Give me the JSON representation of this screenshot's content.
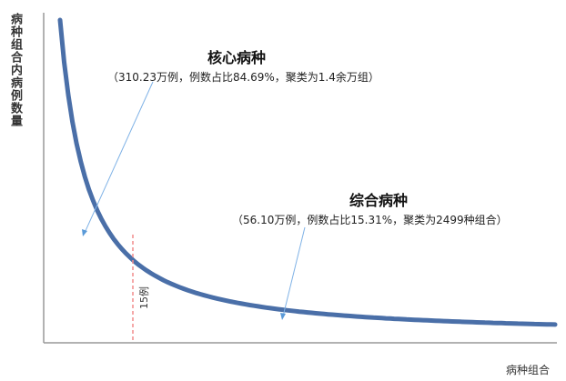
{
  "chart_data": {
    "type": "line",
    "title": "",
    "ylabel": "病种组合内病例数量",
    "xlabel": "病种组合",
    "grid": false,
    "legend": "none",
    "series_color": "#4a6fa8",
    "curve_shape": "decreasing long-tail (power-law)",
    "threshold": {
      "label": "15例",
      "color": "#f28b8b"
    },
    "annotations": [
      {
        "title": "核心病种",
        "detail": "（310.23万例，例数占比84.69%，聚类为1.4余万组）"
      },
      {
        "title": "综合病种",
        "detail": "（56.10万例，例数占比15.31%，聚类为2499种组合）"
      }
    ]
  }
}
